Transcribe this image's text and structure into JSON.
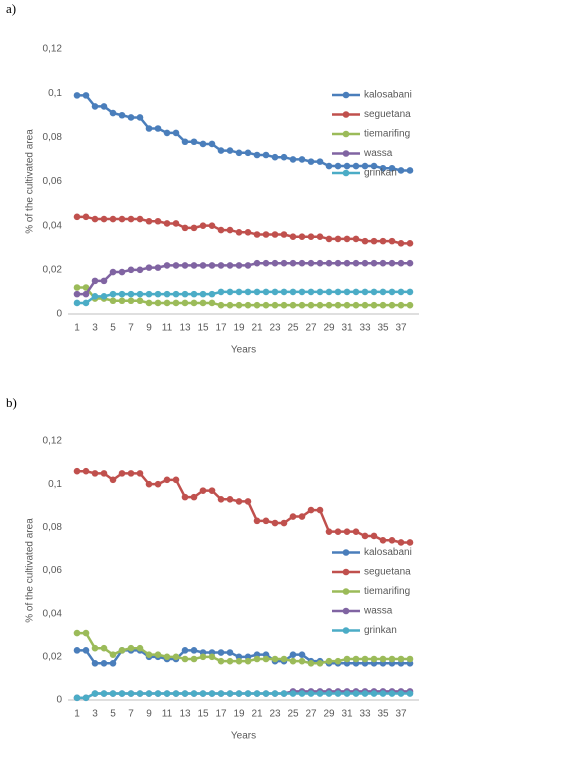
{
  "chart_data": [
    {
      "type": "line",
      "label": "a)",
      "xlabel": "Years",
      "ylabel": "% of the cultivated area",
      "x": [
        1,
        2,
        3,
        4,
        5,
        6,
        7,
        8,
        9,
        10,
        11,
        12,
        13,
        14,
        15,
        16,
        17,
        18,
        19,
        20,
        21,
        22,
        23,
        24,
        25,
        26,
        27,
        28,
        29,
        30,
        31,
        32,
        33,
        34,
        35,
        36,
        37,
        38
      ],
      "xlim": [
        0,
        39
      ],
      "xticks": [
        1,
        3,
        5,
        7,
        9,
        11,
        13,
        15,
        17,
        19,
        21,
        23,
        25,
        27,
        29,
        31,
        33,
        35,
        37
      ],
      "ylim": [
        0,
        0.12
      ],
      "yticks": [
        0,
        {
          "value": 0.02,
          "label": "0,02"
        },
        {
          "value": 0.04,
          "label": "0,04"
        },
        {
          "value": 0.06,
          "label": "0,06"
        },
        {
          "value": 0.08,
          "label": "0,08"
        },
        {
          "value": 0.1,
          "label": "0,1"
        },
        {
          "value": 0.12,
          "label": "0,12"
        }
      ],
      "grid": false,
      "legend": "upper right",
      "series": [
        {
          "name": "kalosabani",
          "color": "#4a7ebb",
          "values": [
            0.099,
            0.099,
            0.094,
            0.094,
            0.091,
            0.09,
            0.089,
            0.089,
            0.084,
            0.084,
            0.082,
            0.082,
            0.078,
            0.078,
            0.077,
            0.077,
            0.074,
            0.074,
            0.073,
            0.073,
            0.072,
            0.072,
            0.071,
            0.071,
            0.07,
            0.07,
            0.069,
            0.069,
            0.067,
            0.067,
            0.067,
            0.067,
            0.067,
            0.067,
            0.066,
            0.066,
            0.065,
            0.065
          ]
        },
        {
          "name": "seguetana",
          "color": "#c0504d",
          "values": [
            0.044,
            0.044,
            0.043,
            0.043,
            0.043,
            0.043,
            0.043,
            0.043,
            0.042,
            0.042,
            0.041,
            0.041,
            0.039,
            0.039,
            0.04,
            0.04,
            0.038,
            0.038,
            0.037,
            0.037,
            0.036,
            0.036,
            0.036,
            0.036,
            0.035,
            0.035,
            0.035,
            0.035,
            0.034,
            0.034,
            0.034,
            0.034,
            0.033,
            0.033,
            0.033,
            0.033,
            0.032,
            0.032
          ]
        },
        {
          "name": "tiemarifing",
          "color": "#9bbb59",
          "values": [
            0.012,
            0.012,
            0.007,
            0.007,
            0.006,
            0.006,
            0.006,
            0.006,
            0.005,
            0.005,
            0.005,
            0.005,
            0.005,
            0.005,
            0.005,
            0.005,
            0.004,
            0.004,
            0.004,
            0.004,
            0.004,
            0.004,
            0.004,
            0.004,
            0.004,
            0.004,
            0.004,
            0.004,
            0.004,
            0.004,
            0.004,
            0.004,
            0.004,
            0.004,
            0.004,
            0.004,
            0.004,
            0.004
          ]
        },
        {
          "name": "wassa",
          "color": "#8064a2",
          "values": [
            0.009,
            0.009,
            0.015,
            0.015,
            0.019,
            0.019,
            0.02,
            0.02,
            0.021,
            0.021,
            0.022,
            0.022,
            0.022,
            0.022,
            0.022,
            0.022,
            0.022,
            0.022,
            0.022,
            0.022,
            0.023,
            0.023,
            0.023,
            0.023,
            0.023,
            0.023,
            0.023,
            0.023,
            0.023,
            0.023,
            0.023,
            0.023,
            0.023,
            0.023,
            0.023,
            0.023,
            0.023,
            0.023
          ]
        },
        {
          "name": "grinkan",
          "color": "#4bacc6",
          "values": [
            0.005,
            0.005,
            0.008,
            0.008,
            0.009,
            0.009,
            0.009,
            0.009,
            0.009,
            0.009,
            0.009,
            0.009,
            0.009,
            0.009,
            0.009,
            0.009,
            0.01,
            0.01,
            0.01,
            0.01,
            0.01,
            0.01,
            0.01,
            0.01,
            0.01,
            0.01,
            0.01,
            0.01,
            0.01,
            0.01,
            0.01,
            0.01,
            0.01,
            0.01,
            0.01,
            0.01,
            0.01,
            0.01
          ]
        }
      ]
    },
    {
      "type": "line",
      "label": "b)",
      "xlabel": "Years",
      "ylabel": "% of the cultivated area",
      "x": [
        1,
        2,
        3,
        4,
        5,
        6,
        7,
        8,
        9,
        10,
        11,
        12,
        13,
        14,
        15,
        16,
        17,
        18,
        19,
        20,
        21,
        22,
        23,
        24,
        25,
        26,
        27,
        28,
        29,
        30,
        31,
        32,
        33,
        34,
        35,
        36,
        37,
        38
      ],
      "xlim": [
        0,
        39
      ],
      "xticks": [
        1,
        3,
        5,
        7,
        9,
        11,
        13,
        15,
        17,
        19,
        21,
        23,
        25,
        27,
        29,
        31,
        33,
        35,
        37
      ],
      "ylim": [
        0,
        0.12
      ],
      "yticks": [
        0,
        {
          "value": 0.02,
          "label": "0,02"
        },
        {
          "value": 0.04,
          "label": "0,04"
        },
        {
          "value": 0.06,
          "label": "0,06"
        },
        {
          "value": 0.08,
          "label": "0,08"
        },
        {
          "value": 0.1,
          "label": "0,1"
        },
        {
          "value": 0.12,
          "label": "0,12"
        }
      ],
      "grid": false,
      "legend": "center right",
      "series": [
        {
          "name": "kalosabani",
          "color": "#4a7ebb",
          "values": [
            0.023,
            0.023,
            0.017,
            0.017,
            0.017,
            0.023,
            0.023,
            0.023,
            0.02,
            0.02,
            0.019,
            0.019,
            0.023,
            0.023,
            0.022,
            0.022,
            0.022,
            0.022,
            0.02,
            0.02,
            0.021,
            0.021,
            0.018,
            0.018,
            0.021,
            0.021,
            0.018,
            0.018,
            0.017,
            0.017,
            0.017,
            0.017,
            0.017,
            0.017,
            0.017,
            0.017,
            0.017,
            0.017
          ]
        },
        {
          "name": "seguetana",
          "color": "#c0504d",
          "values": [
            0.106,
            0.106,
            0.105,
            0.105,
            0.102,
            0.105,
            0.105,
            0.105,
            0.1,
            0.1,
            0.102,
            0.102,
            0.094,
            0.094,
            0.097,
            0.097,
            0.093,
            0.093,
            0.092,
            0.092,
            0.083,
            0.083,
            0.082,
            0.082,
            0.085,
            0.085,
            0.088,
            0.088,
            0.078,
            0.078,
            0.078,
            0.078,
            0.076,
            0.076,
            0.074,
            0.074,
            0.073,
            0.073
          ]
        },
        {
          "name": "tiemarifing",
          "color": "#9bbb59",
          "values": [
            0.031,
            0.031,
            0.024,
            0.024,
            0.021,
            0.023,
            0.024,
            0.024,
            0.021,
            0.021,
            0.02,
            0.02,
            0.019,
            0.019,
            0.02,
            0.02,
            0.018,
            0.018,
            0.018,
            0.018,
            0.019,
            0.019,
            0.019,
            0.019,
            0.018,
            0.018,
            0.017,
            0.017,
            0.018,
            0.018,
            0.019,
            0.019,
            0.019,
            0.019,
            0.019,
            0.019,
            0.019,
            0.019
          ]
        },
        {
          "name": "wassa",
          "color": "#8064a2",
          "values": [
            0.001,
            0.001,
            0.003,
            0.003,
            0.003,
            0.003,
            0.003,
            0.003,
            0.003,
            0.003,
            0.003,
            0.003,
            0.003,
            0.003,
            0.003,
            0.003,
            0.003,
            0.003,
            0.003,
            0.003,
            0.003,
            0.003,
            0.003,
            0.003,
            0.004,
            0.004,
            0.004,
            0.004,
            0.004,
            0.004,
            0.004,
            0.004,
            0.004,
            0.004,
            0.004,
            0.004,
            0.004,
            0.004
          ]
        },
        {
          "name": "grinkan",
          "color": "#4bacc6",
          "values": [
            0.001,
            0.001,
            0.003,
            0.003,
            0.003,
            0.003,
            0.003,
            0.003,
            0.003,
            0.003,
            0.003,
            0.003,
            0.003,
            0.003,
            0.003,
            0.003,
            0.003,
            0.003,
            0.003,
            0.003,
            0.003,
            0.003,
            0.003,
            0.003,
            0.003,
            0.003,
            0.003,
            0.003,
            0.003,
            0.003,
            0.003,
            0.003,
            0.003,
            0.003,
            0.003,
            0.003,
            0.003,
            0.003
          ]
        }
      ]
    }
  ]
}
